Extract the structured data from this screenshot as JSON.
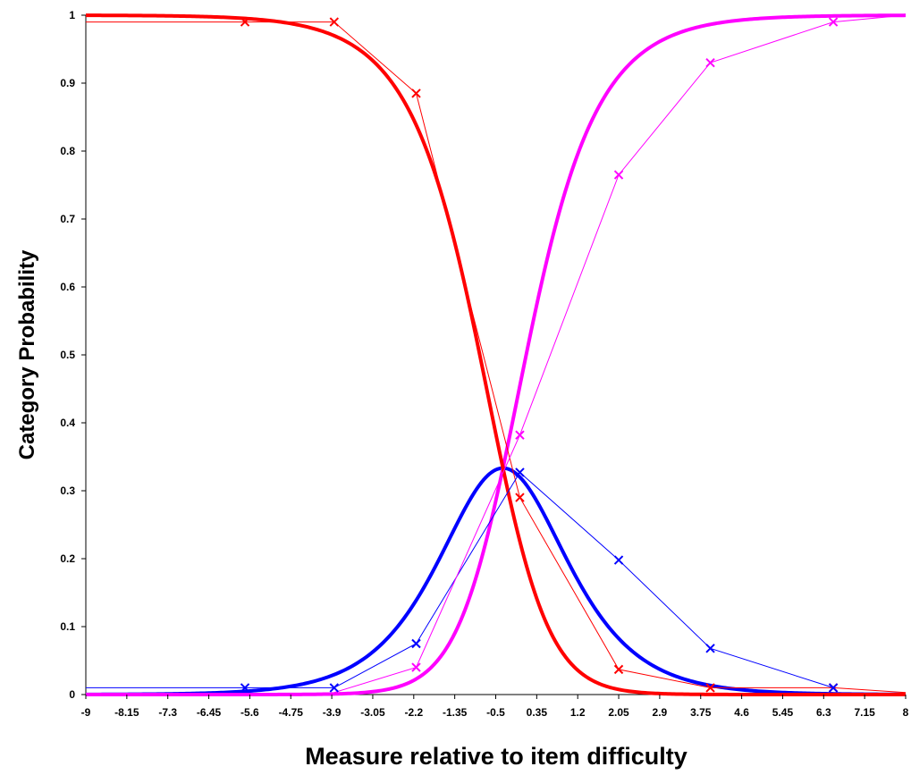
{
  "chart_data": {
    "type": "line",
    "title": "",
    "xlabel": "Measure relative to item difficulty",
    "ylabel": "Category Probability",
    "xlim": [
      -9,
      8
    ],
    "ylim": [
      0,
      1
    ],
    "x_ticks": [
      "-9",
      "-8.15",
      "-7.3",
      "-6.45",
      "-5.6",
      "-4.75",
      "-3.9",
      "-3.05",
      "-2.2",
      "-1.35",
      "-0.5",
      "0.35",
      "1.2",
      "2.05",
      "2.9",
      "3.75",
      "4.6",
      "5.45",
      "6.3",
      "7.15",
      "8"
    ],
    "y_ticks": [
      "0",
      "0.1",
      "0.2",
      "0.3",
      "0.4",
      "0.5",
      "0.6",
      "0.7",
      "0.8",
      "0.9",
      "1"
    ],
    "grid": false,
    "legend": "none",
    "model_curves": {
      "thresholds": [
        -0.35,
        -0.35
      ],
      "colors": [
        "#ff0000",
        "#0000ff",
        "#ff00ff"
      ]
    },
    "observed_series": [
      {
        "color": "#ff0000",
        "x": [
          -9,
          -5.7,
          -3.85,
          -2.15,
          0.0,
          2.05,
          3.95,
          6.5,
          8
        ],
        "y": [
          0.99,
          0.99,
          0.99,
          0.885,
          0.29,
          0.037,
          0.01,
          0.01,
          0.003
        ]
      },
      {
        "color": "#0000ff",
        "x": [
          -9,
          -5.7,
          -3.85,
          -2.15,
          0.0,
          2.05,
          3.95,
          6.5
        ],
        "y": [
          0.01,
          0.01,
          0.01,
          0.075,
          0.327,
          0.198,
          0.068,
          0.01
        ]
      },
      {
        "color": "#ff00ff",
        "x": [
          -3.85,
          -2.15,
          0.0,
          2.05,
          3.95,
          6.5,
          8
        ],
        "y": [
          0.003,
          0.04,
          0.382,
          0.765,
          0.93,
          0.99,
          1.0
        ]
      }
    ],
    "observed_markers": [
      {
        "color": "#ff0000",
        "x": [
          -5.7,
          -3.85,
          -2.15,
          0.0,
          2.05,
          3.95,
          6.5
        ],
        "y": [
          0.99,
          0.99,
          0.885,
          0.29,
          0.037,
          0.01,
          0.01
        ]
      },
      {
        "color": "#0000ff",
        "x": [
          -5.7,
          -3.85,
          -2.15,
          0.0,
          2.05,
          3.95,
          6.5
        ],
        "y": [
          0.01,
          0.01,
          0.075,
          0.327,
          0.198,
          0.068,
          0.01
        ]
      },
      {
        "color": "#ff00ff",
        "x": [
          -2.15,
          0.0,
          2.05,
          3.95,
          6.5
        ],
        "y": [
          0.04,
          0.382,
          0.765,
          0.93,
          0.99
        ]
      }
    ]
  }
}
